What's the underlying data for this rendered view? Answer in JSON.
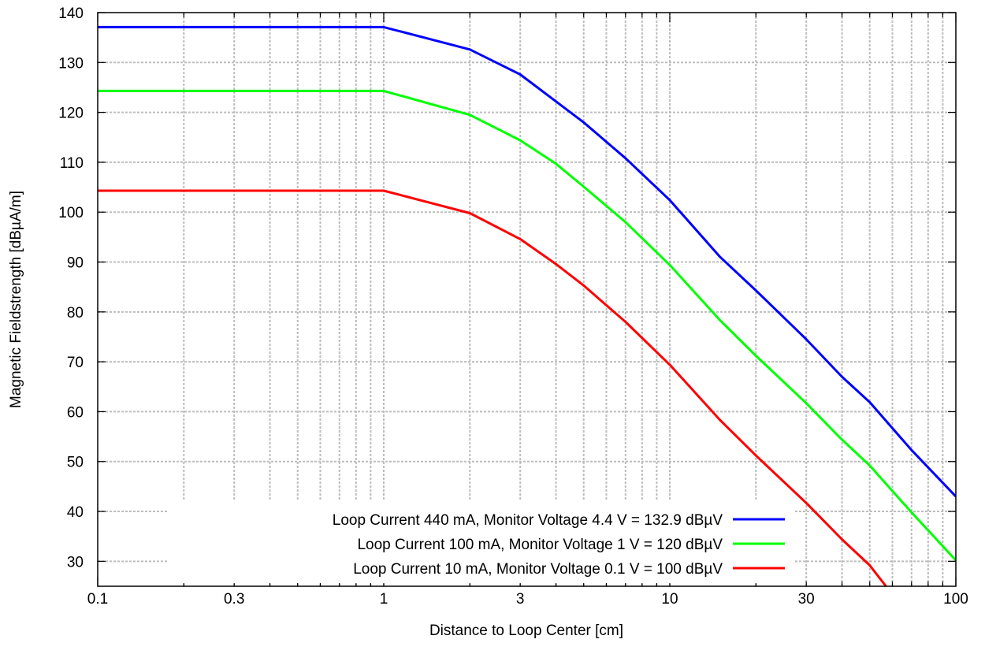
{
  "chart_data": {
    "type": "line",
    "xlabel": "Distance to Loop Center [cm]",
    "ylabel": "Magnetic Fieldstrength [dBµA/m]",
    "x_scale": "log",
    "xlim": [
      0.1,
      100
    ],
    "ylim": [
      25,
      140
    ],
    "x_ticks": [
      {
        "value": 0.1,
        "label": "0.1"
      },
      {
        "value": 0.3,
        "label": "0.3"
      },
      {
        "value": 1,
        "label": "1"
      },
      {
        "value": 3,
        "label": "3"
      },
      {
        "value": 10,
        "label": "10"
      },
      {
        "value": 30,
        "label": "30"
      },
      {
        "value": 100,
        "label": "100"
      }
    ],
    "y_ticks": [
      {
        "value": 30,
        "label": "30"
      },
      {
        "value": 40,
        "label": "40"
      },
      {
        "value": 50,
        "label": "50"
      },
      {
        "value": 60,
        "label": "60"
      },
      {
        "value": 70,
        "label": "70"
      },
      {
        "value": 80,
        "label": "80"
      },
      {
        "value": 90,
        "label": "90"
      },
      {
        "value": 100,
        "label": "100"
      },
      {
        "value": 110,
        "label": "110"
      },
      {
        "value": 120,
        "label": "120"
      },
      {
        "value": 130,
        "label": "130"
      },
      {
        "value": 140,
        "label": "140"
      }
    ],
    "grid": true,
    "legend_position": "bottom-center",
    "series": [
      {
        "name": "Loop Current 440 mA, Monitor Voltage 4.4 V = 132.9 dBµV",
        "color": "#0000ff",
        "x": [
          0.1,
          1,
          2,
          3,
          4,
          5,
          7,
          10,
          15,
          20,
          30,
          40,
          50,
          70,
          100
        ],
        "y": [
          137.1,
          137.1,
          132.6,
          127.6,
          122.2,
          118.0,
          110.8,
          102.4,
          91.0,
          84.3,
          74.5,
          67.0,
          61.9,
          52.3,
          43.0
        ]
      },
      {
        "name": "Loop Current 100 mA, Monitor Voltage 1 V = 120 dBµV",
        "color": "#00ff00",
        "x": [
          0.1,
          1,
          2,
          3,
          4,
          5,
          7,
          10,
          15,
          20,
          30,
          40,
          50,
          70,
          100
        ],
        "y": [
          124.3,
          124.3,
          119.5,
          114.4,
          109.7,
          105.1,
          98.0,
          89.4,
          78.3,
          71.2,
          61.7,
          54.4,
          49.2,
          39.8,
          30.2
        ]
      },
      {
        "name": "Loop Current 10 mA, Monitor Voltage 0.1 V = 100 dBµV",
        "color": "#ff0000",
        "x": [
          0.1,
          1,
          2,
          3,
          4,
          5,
          7,
          10,
          15,
          20,
          30,
          40,
          50,
          57
        ],
        "y": [
          104.3,
          104.3,
          99.8,
          94.6,
          89.6,
          85.3,
          78.0,
          69.4,
          58.3,
          51.2,
          41.7,
          34.4,
          29.2,
          25.0
        ]
      }
    ]
  }
}
